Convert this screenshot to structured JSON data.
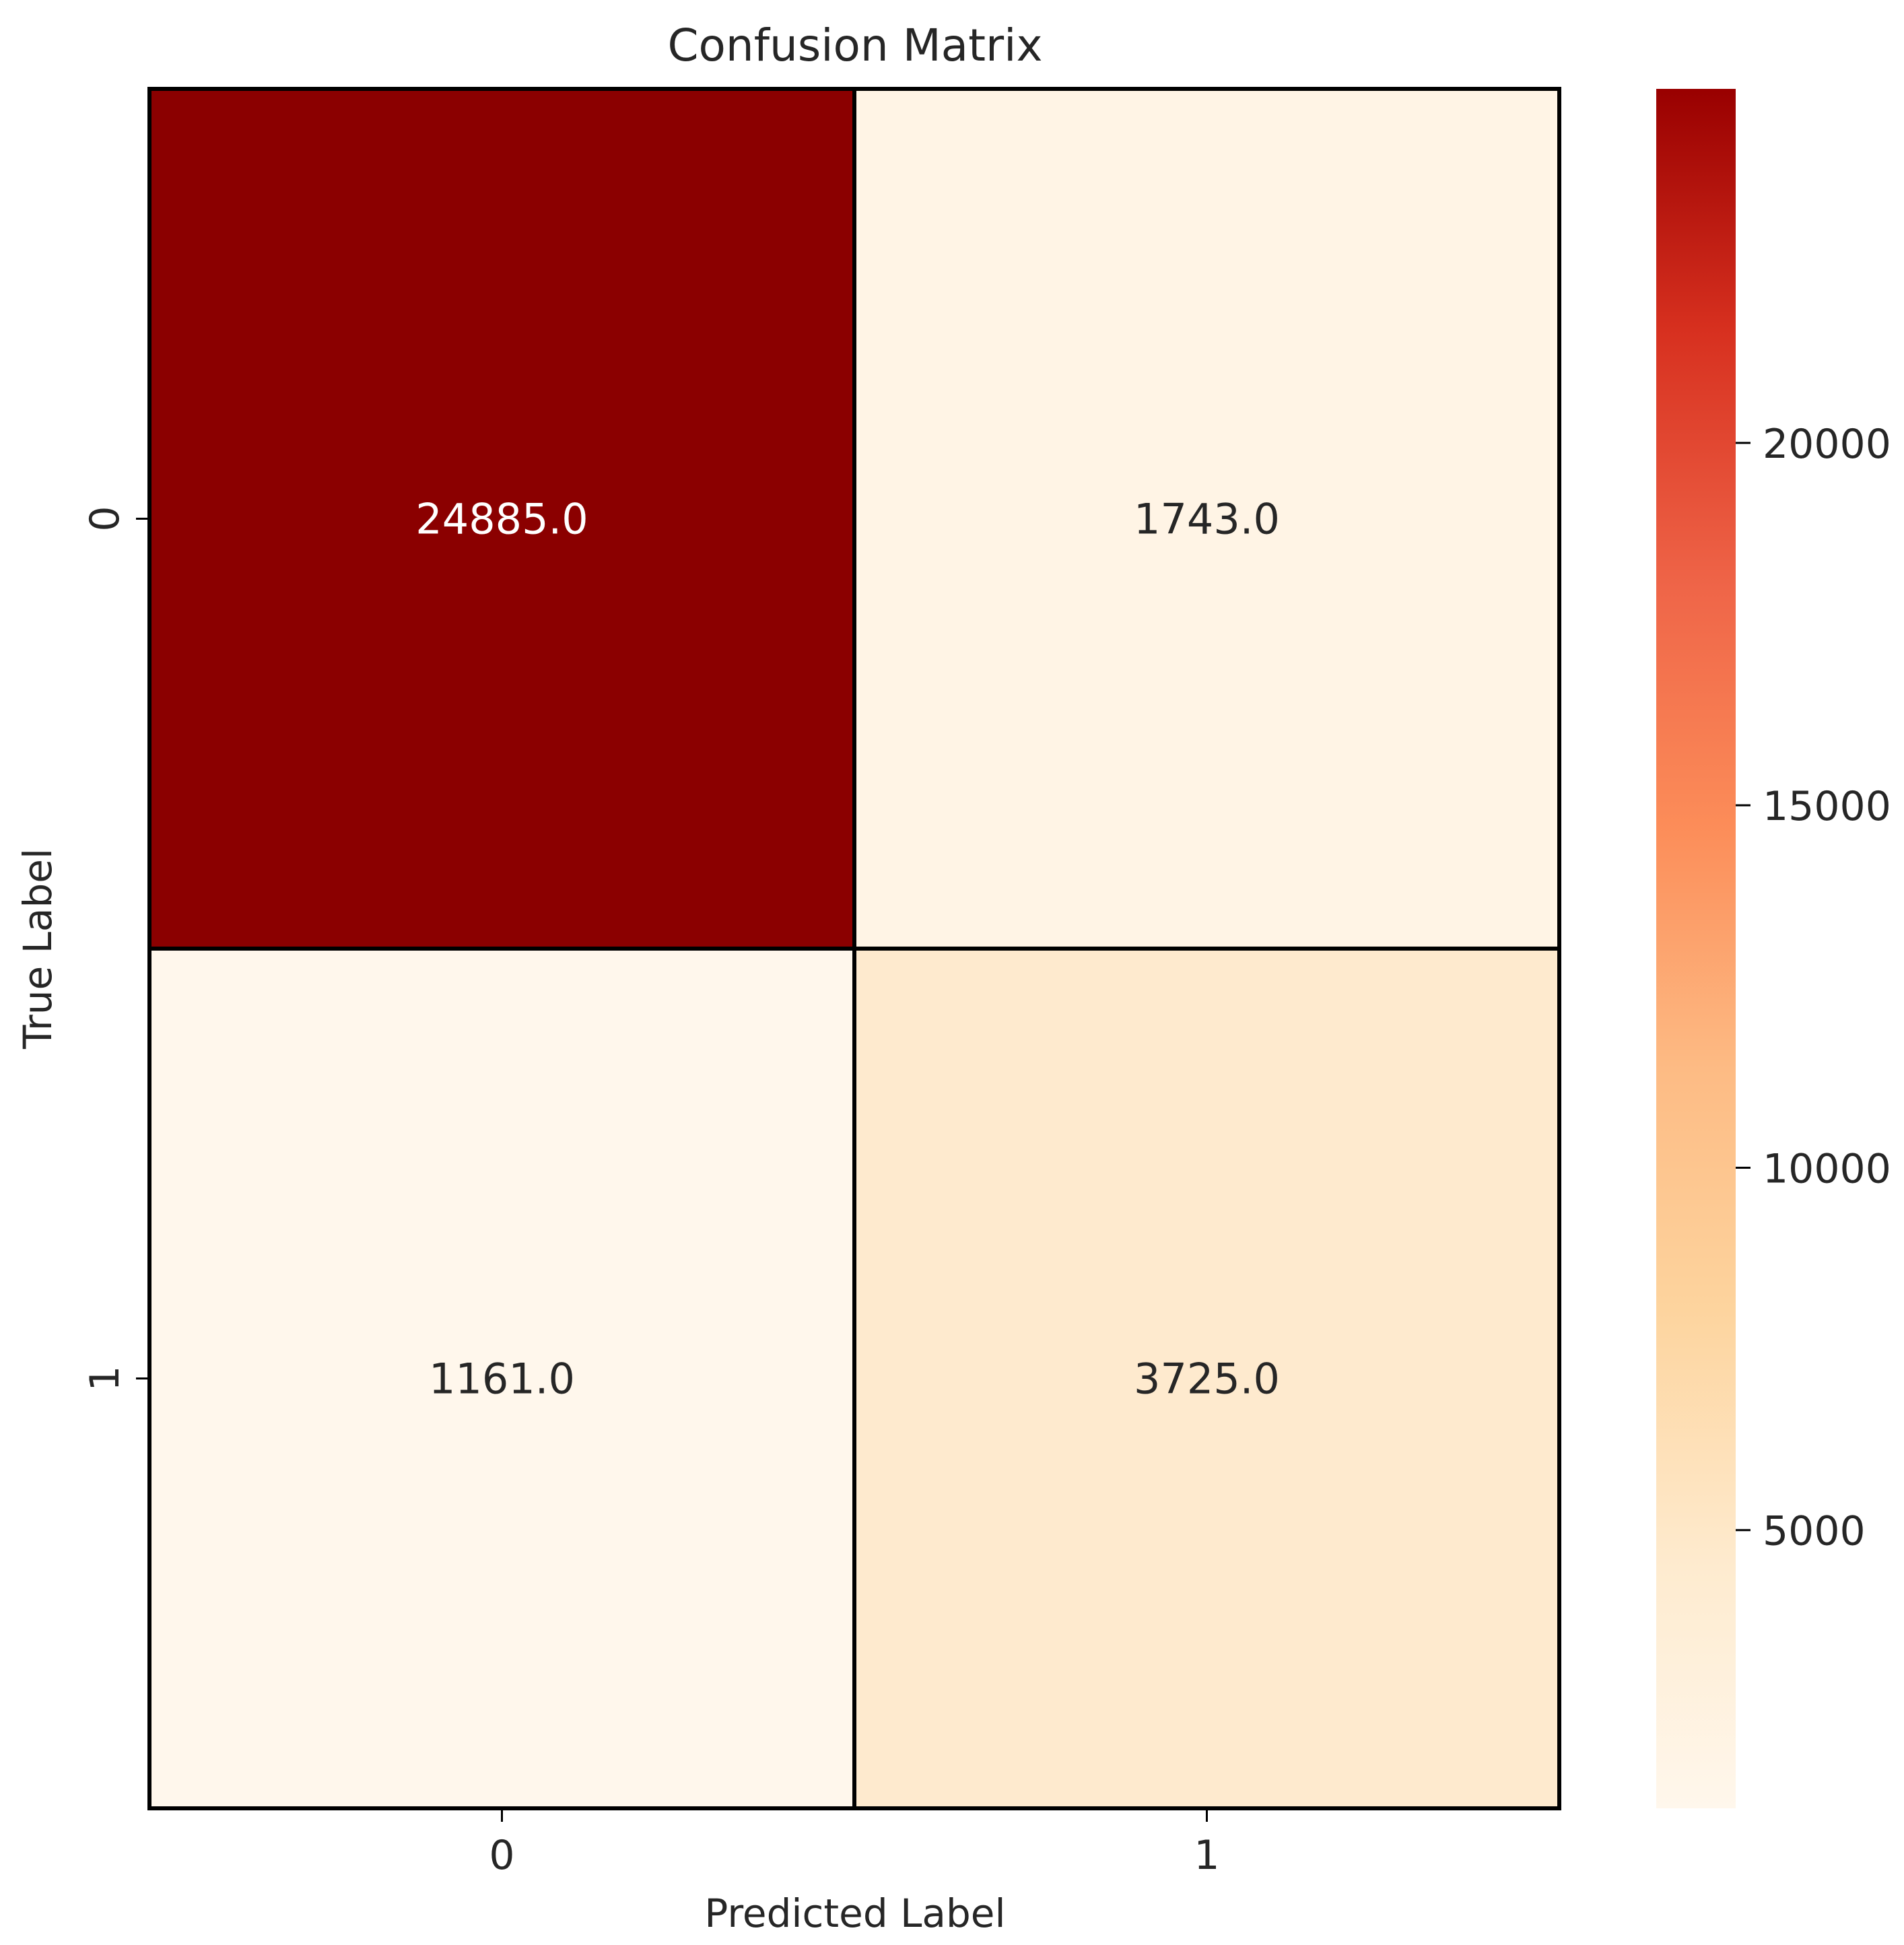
{
  "chart_data": {
    "type": "heatmap",
    "title": "Confusion Matrix",
    "xlabel": "Predicted Label",
    "ylabel": "True Label",
    "x_categories": [
      "0",
      "1"
    ],
    "y_categories": [
      "0",
      "1"
    ],
    "values": [
      [
        24885.0,
        1743.0
      ],
      [
        1161.0,
        3725.0
      ]
    ],
    "cell_labels": [
      [
        "24885.0",
        "1743.0"
      ],
      [
        "1161.0",
        "3725.0"
      ]
    ],
    "colormap": "OrRd",
    "colorbar": {
      "range": [
        1161.0,
        24885.0
      ],
      "ticks": [
        5000,
        10000,
        15000,
        20000
      ],
      "tick_labels": [
        "5000",
        "10000",
        "15000",
        "20000"
      ]
    },
    "colors": {
      "cell_border": "#000000",
      "annotation_dark_bg": "#ffffff",
      "annotation_light_bg": "#262626"
    }
  }
}
